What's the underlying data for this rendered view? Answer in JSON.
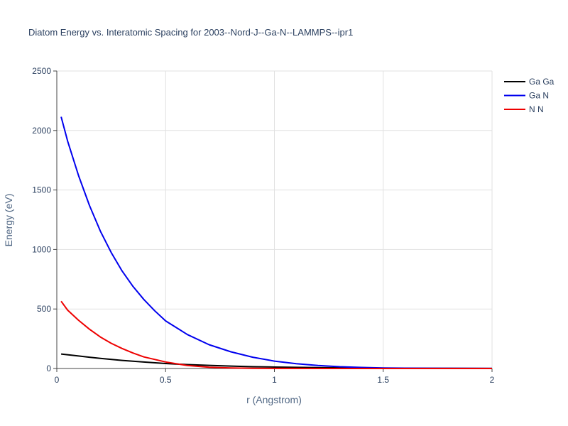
{
  "chart_data": {
    "type": "line",
    "title": "Diatom Energy vs. Interatomic Spacing for 2003--Nord-J--Ga-N--LAMMPS--ipr1",
    "xlabel": "r (Angstrom)",
    "ylabel": "Energy (eV)",
    "xlim": [
      0,
      2
    ],
    "ylim": [
      0,
      2500
    ],
    "x_ticks": [
      0,
      0.5,
      1,
      1.5,
      2
    ],
    "x_tick_labels": [
      "0",
      "0.5",
      "1",
      "1.5",
      "2"
    ],
    "y_ticks": [
      0,
      500,
      1000,
      1500,
      2000,
      2500
    ],
    "y_tick_labels": [
      "0",
      "500",
      "1000",
      "1500",
      "2000",
      "2500"
    ],
    "grid": true,
    "legend_position": "top-right",
    "series": [
      {
        "name": "Ga Ga",
        "color": "#000000",
        "x": [
          0.02,
          0.1,
          0.2,
          0.3,
          0.4,
          0.5,
          0.6,
          0.7,
          0.8,
          0.9,
          1.0,
          1.2,
          1.4,
          1.6,
          1.8,
          2.0
        ],
        "y": [
          122,
          105,
          85,
          68,
          54,
          42,
          33,
          26,
          20,
          15,
          12,
          7,
          4,
          2,
          1,
          0.5
        ]
      },
      {
        "name": "Ga N",
        "color": "#0000ee",
        "x": [
          0.02,
          0.05,
          0.1,
          0.15,
          0.2,
          0.25,
          0.3,
          0.35,
          0.4,
          0.45,
          0.5,
          0.6,
          0.7,
          0.8,
          0.9,
          1.0,
          1.1,
          1.2,
          1.3,
          1.4,
          1.5,
          1.6,
          1.8,
          2.0
        ],
        "y": [
          2115,
          1910,
          1620,
          1370,
          1155,
          975,
          820,
          690,
          580,
          485,
          400,
          285,
          200,
          140,
          95,
          62,
          40,
          25,
          15,
          9,
          5,
          3,
          1,
          0.3
        ]
      },
      {
        "name": "N N",
        "color": "#ee0000",
        "x": [
          0.02,
          0.05,
          0.1,
          0.15,
          0.2,
          0.25,
          0.3,
          0.35,
          0.4,
          0.5,
          0.6,
          0.7,
          0.8,
          0.9,
          1.0,
          1.2,
          1.5,
          2.0
        ],
        "y": [
          565,
          490,
          405,
          330,
          265,
          212,
          168,
          130,
          97,
          55,
          25,
          10,
          4,
          1.5,
          0.5,
          0.1,
          0,
          0
        ]
      }
    ]
  }
}
